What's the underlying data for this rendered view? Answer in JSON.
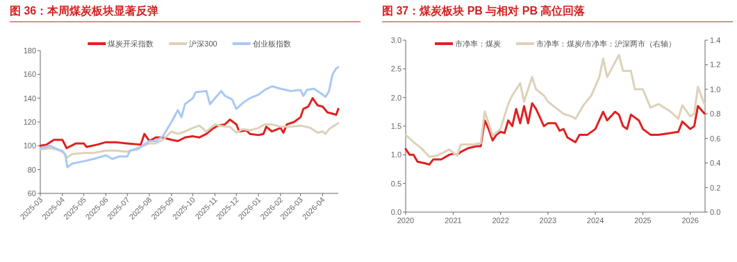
{
  "chart_data": [
    {
      "type": "line",
      "title": "图 36：本周煤炭板块显著反弹",
      "legend": "top",
      "xlim": [
        "2025-03-01",
        "2026-04-23"
      ],
      "xticks": [
        {
          "value": "2025-03-01",
          "label": "2025-03"
        },
        {
          "value": "2025-04-01",
          "label": "2025-04"
        },
        {
          "value": "2025-05-01",
          "label": "2025-05"
        },
        {
          "value": "2025-06-01",
          "label": "2025-06"
        },
        {
          "value": "2025-07-01",
          "label": "2025-07"
        },
        {
          "value": "2025-08-01",
          "label": "2025-08"
        },
        {
          "value": "2025-09-01",
          "label": "2025-09"
        },
        {
          "value": "2025-10-01",
          "label": "2025-10"
        },
        {
          "value": "2025-11-01",
          "label": "2025-11"
        },
        {
          "value": "2025-12-01",
          "label": "2025-12"
        },
        {
          "value": "2026-01-01",
          "label": "2026-01"
        },
        {
          "value": "2026-02-01",
          "label": "2026-02"
        },
        {
          "value": "2026-03-01",
          "label": "2026-03"
        },
        {
          "value": "2026-04-01",
          "label": "2026-04"
        }
      ],
      "ylim": [
        60,
        180
      ],
      "yticks": [
        60,
        80,
        100,
        120,
        140,
        160,
        180
      ],
      "series": [
        {
          "name": "煤炭开采指数",
          "color": "#e02020",
          "x": [
            "2025-03-01",
            "2025-03-10",
            "2025-03-20",
            "2025-04-01",
            "2025-04-07",
            "2025-04-20",
            "2025-05-01",
            "2025-05-05",
            "2025-05-20",
            "2025-06-01",
            "2025-06-15",
            "2025-07-01",
            "2025-07-20",
            "2025-07-25",
            "2025-08-01",
            "2025-08-10",
            "2025-08-20",
            "2025-09-01",
            "2025-09-10",
            "2025-09-20",
            "2025-10-01",
            "2025-10-10",
            "2025-10-20",
            "2025-10-28",
            "2025-11-05",
            "2025-11-15",
            "2025-11-22",
            "2025-12-01",
            "2025-12-05",
            "2025-12-15",
            "2025-12-20",
            "2026-01-01",
            "2026-01-08",
            "2026-01-12",
            "2026-01-20",
            "2026-02-01",
            "2026-02-05",
            "2026-02-10",
            "2026-02-20",
            "2026-03-01",
            "2026-03-05",
            "2026-03-12",
            "2026-03-18",
            "2026-03-25",
            "2026-04-01",
            "2026-04-08",
            "2026-04-15",
            "2026-04-20",
            "2026-04-23"
          ],
          "values": [
            100,
            101,
            105,
            105,
            98,
            102,
            102,
            99,
            101,
            103,
            103,
            102,
            101,
            110,
            104,
            107,
            107,
            105,
            104,
            107,
            108,
            107,
            110,
            114,
            117,
            118,
            122,
            118,
            112,
            113,
            110,
            109,
            110,
            116,
            112,
            115,
            111,
            118,
            120,
            124,
            131,
            133,
            140,
            134,
            133,
            128,
            127,
            126,
            131
          ]
        },
        {
          "name": "沪深300",
          "color": "#ddd1b8",
          "x": [
            "2025-03-01",
            "2025-03-15",
            "2025-04-01",
            "2025-04-07",
            "2025-04-15",
            "2025-05-01",
            "2025-05-15",
            "2025-06-01",
            "2025-06-15",
            "2025-07-01",
            "2025-07-15",
            "2025-08-01",
            "2025-08-10",
            "2025-08-20",
            "2025-09-01",
            "2025-09-10",
            "2025-09-20",
            "2025-10-01",
            "2025-10-10",
            "2025-10-20",
            "2025-11-01",
            "2025-11-15",
            "2025-11-22",
            "2025-12-01",
            "2025-12-10",
            "2025-12-20",
            "2026-01-01",
            "2026-01-10",
            "2026-01-20",
            "2026-02-01",
            "2026-02-15",
            "2026-03-01",
            "2026-03-15",
            "2026-03-25",
            "2026-04-01",
            "2026-04-05",
            "2026-04-10",
            "2026-04-20",
            "2026-04-23"
          ],
          "values": [
            97,
            98,
            96,
            90,
            93,
            94,
            94,
            96,
            96,
            95,
            98,
            102,
            102,
            105,
            112,
            110,
            112,
            115,
            117,
            112,
            118,
            116,
            116,
            111,
            114,
            113,
            115,
            118,
            118,
            116,
            116,
            117,
            115,
            111,
            112,
            110,
            114,
            118,
            119
          ]
        },
        {
          "name": "创业板指数",
          "color": "#a9c8f5",
          "x": [
            "2025-03-01",
            "2025-03-15",
            "2025-04-01",
            "2025-04-05",
            "2025-04-08",
            "2025-04-15",
            "2025-05-01",
            "2025-05-15",
            "2025-06-01",
            "2025-06-10",
            "2025-06-20",
            "2025-07-01",
            "2025-07-05",
            "2025-07-15",
            "2025-08-01",
            "2025-08-10",
            "2025-08-20",
            "2025-09-01",
            "2025-09-10",
            "2025-09-15",
            "2025-09-20",
            "2025-10-01",
            "2025-10-05",
            "2025-10-20",
            "2025-10-25",
            "2025-11-01",
            "2025-11-10",
            "2025-11-15",
            "2025-11-25",
            "2025-12-01",
            "2025-12-10",
            "2025-12-20",
            "2026-01-01",
            "2026-01-10",
            "2026-01-20",
            "2026-02-01",
            "2026-02-15",
            "2026-03-01",
            "2026-03-05",
            "2026-03-10",
            "2026-03-20",
            "2026-04-01",
            "2026-04-05",
            "2026-04-10",
            "2026-04-15",
            "2026-04-20",
            "2026-04-23"
          ],
          "values": [
            98,
            100,
            95,
            93,
            82,
            85,
            87,
            89,
            92,
            89,
            91,
            91,
            96,
            97,
            104,
            104,
            108,
            120,
            130,
            124,
            135,
            140,
            145,
            146,
            135,
            140,
            146,
            142,
            139,
            131,
            136,
            140,
            143,
            147,
            150,
            148,
            146,
            147,
            142,
            147,
            148,
            143,
            141,
            146,
            160,
            165,
            166
          ]
        }
      ]
    },
    {
      "type": "line",
      "title": "图 37：煤炭板块 PB 与相对 PB 高位回落",
      "legend": "top",
      "xlim": [
        "2020-01-01",
        "2026-04-25"
      ],
      "xticks": [
        {
          "value": "2020-01-01",
          "label": "2020"
        },
        {
          "value": "2021-01-01",
          "label": "2021"
        },
        {
          "value": "2022-01-01",
          "label": "2022"
        },
        {
          "value": "2023-01-01",
          "label": "2023"
        },
        {
          "value": "2024-01-01",
          "label": "2024"
        },
        {
          "value": "2025-01-01",
          "label": "2025"
        },
        {
          "value": "2026-01-01",
          "label": "2026"
        }
      ],
      "ylim": [
        0,
        3
      ],
      "yticks": [
        {
          "value": 0,
          "label": "0.0"
        },
        {
          "value": 0.5,
          "label": "0.5"
        },
        {
          "value": 1,
          "label": "1.0"
        },
        {
          "value": 1.5,
          "label": "1.5"
        },
        {
          "value": 2,
          "label": "2.0"
        },
        {
          "value": 2.5,
          "label": "2.5"
        },
        {
          "value": 3,
          "label": "3.0"
        }
      ],
      "y2lim": [
        0,
        1.4
      ],
      "y2ticks": [
        {
          "value": 0,
          "label": "0.0"
        },
        {
          "value": 0.2,
          "label": "0.2"
        },
        {
          "value": 0.4,
          "label": "0.4"
        },
        {
          "value": 0.6,
          "label": "0.6"
        },
        {
          "value": 0.8,
          "label": "0.8"
        },
        {
          "value": 1,
          "label": "1.0"
        },
        {
          "value": 1.2,
          "label": "1.2"
        },
        {
          "value": 1.4,
          "label": "1.4"
        }
      ],
      "series": [
        {
          "name": "市净率：煤炭",
          "color": "#e02020",
          "x": [
            "2020-01",
            "2020-02",
            "2020-03",
            "2020-04",
            "2020-06",
            "2020-07",
            "2020-08",
            "2020-10",
            "2020-12",
            "2021-01",
            "2021-02",
            "2021-03",
            "2021-05",
            "2021-07",
            "2021-08",
            "2021-09",
            "2021-10",
            "2021-11",
            "2021-12",
            "2022-01",
            "2022-02",
            "2022-03",
            "2022-04",
            "2022-05",
            "2022-06",
            "2022-07",
            "2022-08",
            "2022-09",
            "2022-10",
            "2022-11",
            "2022-12",
            "2023-01",
            "2023-03",
            "2023-04",
            "2023-05",
            "2023-06",
            "2023-08",
            "2023-09",
            "2023-11",
            "2024-01",
            "2024-03",
            "2024-04",
            "2024-06",
            "2024-07",
            "2024-08",
            "2024-09",
            "2024-10",
            "2024-12",
            "2025-01",
            "2025-03",
            "2025-05",
            "2025-08",
            "2025-10",
            "2025-11",
            "2026-01",
            "2026-02",
            "2026-03",
            "2026-04-20"
          ],
          "values": [
            1.1,
            1.0,
            1.0,
            0.88,
            0.85,
            0.83,
            0.92,
            0.92,
            1.0,
            1.02,
            1.0,
            1.05,
            1.12,
            1.15,
            1.15,
            1.6,
            1.45,
            1.25,
            1.35,
            1.4,
            1.38,
            1.6,
            1.5,
            1.8,
            1.55,
            1.85,
            1.55,
            1.9,
            1.8,
            1.65,
            1.5,
            1.55,
            1.55,
            1.42,
            1.45,
            1.3,
            1.22,
            1.35,
            1.35,
            1.45,
            1.75,
            1.6,
            1.75,
            1.7,
            1.5,
            1.45,
            1.7,
            1.6,
            1.45,
            1.35,
            1.35,
            1.38,
            1.4,
            1.58,
            1.45,
            1.5,
            1.85,
            1.72
          ]
        },
        {
          "name": "市净率：煤炭/市净率：沪深两市（右轴）",
          "color": "#ddd1b8",
          "axis": "y2",
          "x": [
            "2020-01",
            "2020-03",
            "2020-05",
            "2020-07",
            "2020-09",
            "2020-12",
            "2021-02",
            "2021-03",
            "2021-06",
            "2021-08",
            "2021-09",
            "2021-11",
            "2022-01",
            "2022-03",
            "2022-04",
            "2022-06",
            "2022-07",
            "2022-09",
            "2022-10",
            "2022-12",
            "2023-01",
            "2023-03",
            "2023-05",
            "2023-07",
            "2023-08",
            "2023-10",
            "2023-12",
            "2024-02",
            "2024-03",
            "2024-04",
            "2024-06",
            "2024-07",
            "2024-08",
            "2024-10",
            "2024-11",
            "2025-01",
            "2025-03",
            "2025-05",
            "2025-08",
            "2025-10",
            "2025-11",
            "2026-01",
            "2026-02",
            "2026-03",
            "2026-04-20"
          ],
          "values": [
            0.63,
            0.57,
            0.52,
            0.45,
            0.46,
            0.51,
            0.46,
            0.55,
            0.55,
            0.56,
            0.82,
            0.62,
            0.68,
            0.88,
            0.95,
            1.05,
            0.9,
            1.1,
            1.0,
            0.95,
            0.9,
            0.85,
            0.8,
            0.78,
            0.76,
            0.87,
            0.95,
            1.1,
            1.25,
            1.1,
            1.22,
            1.28,
            1.15,
            1.15,
            1.0,
            1.0,
            0.85,
            0.88,
            0.82,
            0.76,
            0.87,
            0.78,
            0.8,
            1.02,
            0.88
          ]
        }
      ]
    }
  ]
}
